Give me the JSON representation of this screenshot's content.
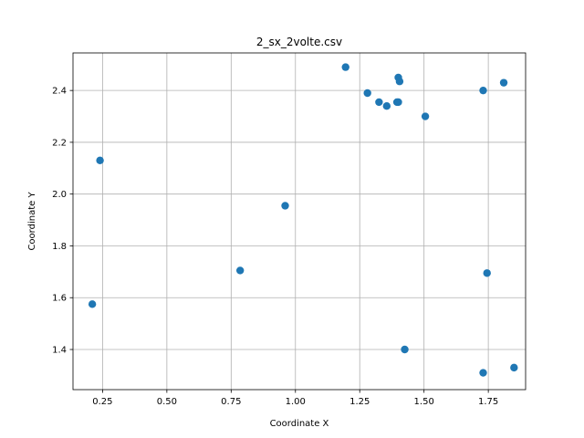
{
  "chart_data": {
    "type": "scatter",
    "title": "2_sx_2volte.csv",
    "xlabel": "Coordinate X",
    "ylabel": "Coordinate Y",
    "xlim": [
      0.135,
      1.895
    ],
    "ylim": [
      1.245,
      2.545
    ],
    "xticks": [
      0.25,
      0.5,
      0.75,
      1.0,
      1.25,
      1.5,
      1.75
    ],
    "xtick_labels": [
      "0.25",
      "0.50",
      "0.75",
      "1.00",
      "1.25",
      "1.50",
      "1.75"
    ],
    "yticks": [
      1.4,
      1.6,
      1.8,
      2.0,
      2.2,
      2.4
    ],
    "ytick_labels": [
      "1.4",
      "1.6",
      "1.8",
      "2.0",
      "2.2",
      "2.4"
    ],
    "grid": true,
    "marker_color": "#1f77b4",
    "points": [
      {
        "x": 0.24,
        "y": 2.13
      },
      {
        "x": 0.21,
        "y": 1.575
      },
      {
        "x": 0.785,
        "y": 1.705
      },
      {
        "x": 0.96,
        "y": 1.955
      },
      {
        "x": 1.195,
        "y": 2.49
      },
      {
        "x": 1.28,
        "y": 2.39
      },
      {
        "x": 1.325,
        "y": 2.355
      },
      {
        "x": 1.355,
        "y": 2.34
      },
      {
        "x": 1.395,
        "y": 2.355
      },
      {
        "x": 1.4,
        "y": 2.355
      },
      {
        "x": 1.4,
        "y": 2.45
      },
      {
        "x": 1.405,
        "y": 2.435
      },
      {
        "x": 1.425,
        "y": 1.4
      },
      {
        "x": 1.505,
        "y": 2.3
      },
      {
        "x": 1.73,
        "y": 2.4
      },
      {
        "x": 1.81,
        "y": 2.43
      },
      {
        "x": 1.745,
        "y": 1.695
      },
      {
        "x": 1.73,
        "y": 1.31
      },
      {
        "x": 1.85,
        "y": 1.33
      }
    ]
  }
}
